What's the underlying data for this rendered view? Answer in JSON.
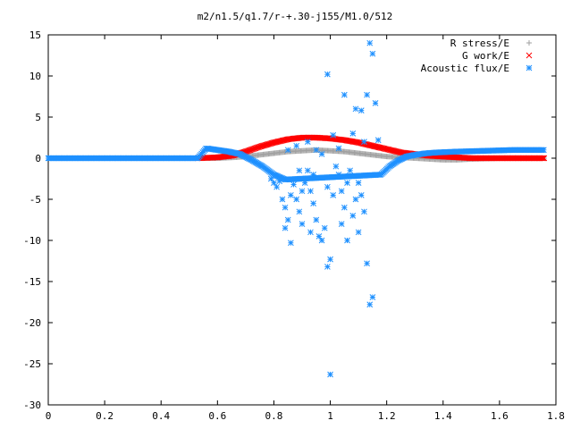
{
  "chart_data": {
    "type": "scatter",
    "title": "m2/n1.5/q1.7/r-+.30-j155/M1.0/512",
    "xlabel": "",
    "ylabel": "",
    "xlim": [
      0,
      1.8
    ],
    "ylim": [
      -30,
      15
    ],
    "x_ticks": [
      0,
      0.2,
      0.4,
      0.6,
      0.8,
      1,
      1.2,
      1.4,
      1.6,
      1.8
    ],
    "x_tick_labels": [
      "0",
      "0.2",
      "0.4",
      "0.6",
      "0.8",
      "1",
      "1.2",
      "1.4",
      "1.6",
      "1.8"
    ],
    "y_ticks": [
      -30,
      -25,
      -20,
      -15,
      -10,
      -5,
      0,
      5,
      10,
      15
    ],
    "y_tick_labels": [
      "-30",
      "-25",
      "-20",
      "-15",
      "-10",
      "-5",
      "0",
      "5",
      "10",
      "15"
    ],
    "grid": false,
    "legend_position": "top-right",
    "series": [
      {
        "name": "R stress/E",
        "marker": "plus",
        "color": "#a0a0a0",
        "curve_x": [
          0.53,
          0.6,
          0.66,
          0.7,
          0.75,
          0.8,
          0.85,
          0.9,
          0.95,
          1.0,
          1.05,
          1.1,
          1.15,
          1.2,
          1.25,
          1.3,
          1.35,
          1.4,
          1.45,
          1.5,
          1.6,
          1.7,
          1.76
        ],
        "curve_y": [
          0.0,
          0.0,
          0.1,
          0.2,
          0.4,
          0.6,
          0.8,
          0.9,
          1.0,
          0.9,
          0.8,
          0.6,
          0.4,
          0.2,
          0.1,
          0.0,
          -0.1,
          -0.2,
          -0.2,
          -0.1,
          0.0,
          0.0,
          0.0
        ]
      },
      {
        "name": "G work/E",
        "marker": "cross",
        "color": "#ff0000",
        "curve_x": [
          0.53,
          0.6,
          0.65,
          0.7,
          0.75,
          0.8,
          0.85,
          0.9,
          0.95,
          1.0,
          1.05,
          1.1,
          1.15,
          1.2,
          1.25,
          1.3,
          1.35,
          1.4,
          1.45,
          1.5,
          1.6,
          1.7,
          1.76
        ],
        "curve_y": [
          0.0,
          0.1,
          0.3,
          0.8,
          1.4,
          1.9,
          2.3,
          2.5,
          2.5,
          2.4,
          2.2,
          1.9,
          1.5,
          1.1,
          0.7,
          0.5,
          0.3,
          0.2,
          0.1,
          0.0,
          0.0,
          0.0,
          0.0
        ]
      },
      {
        "name": "Acoustic flux/E",
        "marker": "star",
        "color": "#1e90ff",
        "curve_x": [
          0.0,
          0.53,
          0.56,
          0.6,
          0.64,
          0.68,
          0.72,
          0.76,
          0.8,
          0.84,
          1.18,
          1.21,
          1.24,
          1.27,
          1.3,
          1.34,
          1.38,
          1.45,
          1.55,
          1.65,
          1.76
        ],
        "curve_y": [
          0.0,
          0.0,
          1.2,
          1.0,
          0.8,
          0.5,
          -0.2,
          -1.0,
          -2.0,
          -2.6,
          -2.0,
          -1.0,
          -0.3,
          0.2,
          0.4,
          0.6,
          0.7,
          0.8,
          0.9,
          1.0,
          1.0
        ],
        "scatter_x": [
          0.79,
          0.8,
          0.81,
          0.82,
          0.83,
          0.84,
          0.84,
          0.85,
          0.86,
          0.86,
          0.87,
          0.88,
          0.89,
          0.9,
          0.9,
          0.91,
          0.92,
          0.93,
          0.93,
          0.94,
          0.95,
          0.96,
          0.97,
          0.98,
          0.99,
          0.99,
          1.0,
          1.0,
          1.01,
          1.02,
          1.03,
          1.04,
          1.04,
          1.05,
          1.06,
          1.06,
          1.07,
          1.08,
          1.09,
          1.1,
          1.1,
          1.11,
          1.12,
          1.13,
          1.13,
          1.14,
          1.14,
          1.15,
          1.15,
          1.16,
          0.88,
          0.92,
          0.95,
          0.97,
          1.01,
          1.03,
          1.08,
          1.12,
          0.85,
          0.89,
          0.94,
          0.99,
          1.05,
          1.09,
          1.11,
          1.17
        ],
        "scatter_y": [
          -2.5,
          -3.0,
          -3.5,
          -2.8,
          -5.0,
          -6.0,
          -8.5,
          -7.5,
          -4.5,
          -10.3,
          -3.2,
          -5.0,
          -6.5,
          -8.0,
          -4.0,
          -3.0,
          -1.5,
          -4.0,
          -9.0,
          -5.5,
          -7.5,
          -9.5,
          -10.0,
          -8.5,
          -13.2,
          -3.5,
          -12.3,
          -26.3,
          -4.5,
          -1.0,
          -2.0,
          -4.0,
          -8.0,
          -6.0,
          -3.0,
          -10.0,
          -1.5,
          -7.0,
          -5.0,
          -9.0,
          -3.0,
          -4.5,
          -6.5,
          -12.8,
          7.7,
          -17.8,
          14.0,
          -16.9,
          12.7,
          6.7,
          1.5,
          2.0,
          1.0,
          0.5,
          2.8,
          1.2,
          3.0,
          2.0,
          1.0,
          -1.5,
          -2.0,
          10.2,
          7.7,
          6.0,
          5.8,
          2.2
        ]
      }
    ]
  }
}
